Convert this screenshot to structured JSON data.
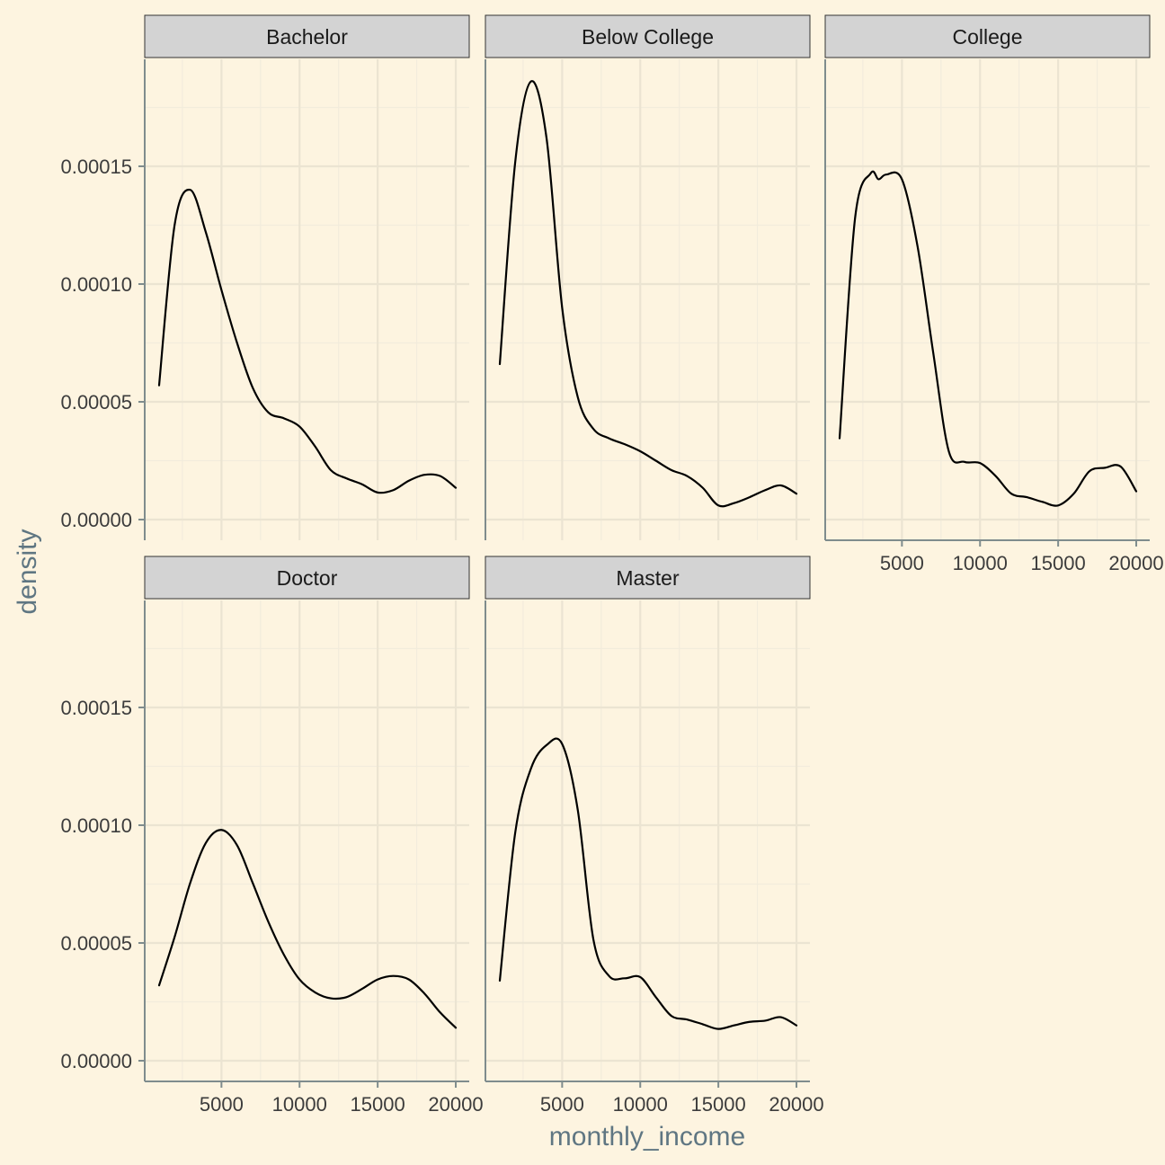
{
  "chart_data": {
    "type": "line",
    "xlabel": "monthly_income",
    "ylabel": "density",
    "xlim": [
      1009,
      19999
    ],
    "ylim": [
      0,
      0.00019
    ],
    "x_ticks": [
      5000,
      10000,
      15000,
      20000
    ],
    "x_tick_labels": [
      "5000",
      "10000",
      "15000",
      "20000"
    ],
    "y_ticks": [
      0,
      5e-05,
      0.0001,
      0.00015
    ],
    "y_tick_labels": [
      "0.00000",
      "0.00005",
      "0.00010",
      "0.00015"
    ],
    "grid": true,
    "legend": "none",
    "facets": [
      {
        "name": "Bachelor",
        "x": [
          1009,
          2000,
          3000,
          4000,
          5000,
          6000,
          7000,
          8000,
          9000,
          10000,
          11000,
          12000,
          13000,
          14000,
          15000,
          16000,
          17000,
          18000,
          19000,
          19999
        ],
        "y": [
          5.7e-05,
          0.000125,
          0.00014,
          0.000122,
          9.75e-05,
          7.5e-05,
          5.6e-05,
          4.55e-05,
          4.3e-05,
          3.95e-05,
          3.1e-05,
          2.1e-05,
          1.75e-05,
          1.5e-05,
          1.15e-05,
          1.25e-05,
          1.65e-05,
          1.9e-05,
          1.85e-05,
          1.35e-05
        ]
      },
      {
        "name": "Below College",
        "x": [
          1009,
          2000,
          3000,
          4000,
          5000,
          6000,
          7000,
          8000,
          9000,
          10000,
          11000,
          12000,
          13000,
          14000,
          15000,
          16000,
          17000,
          18000,
          19000,
          19999
        ],
        "y": [
          6.6e-05,
          0.000152,
          0.000186,
          0.000162,
          9e-05,
          5.2e-05,
          3.85e-05,
          3.45e-05,
          3.2e-05,
          2.9e-05,
          2.5e-05,
          2.1e-05,
          1.85e-05,
          1.35e-05,
          6e-06,
          7e-06,
          9.5e-06,
          1.25e-05,
          1.45e-05,
          1.1e-05
        ]
      },
      {
        "name": "College",
        "x": [
          1009,
          2000,
          3000,
          3500,
          4000,
          5000,
          6000,
          7000,
          8000,
          9000,
          10000,
          11000,
          12000,
          13000,
          14000,
          15000,
          16000,
          17000,
          18000,
          19000,
          19999
        ],
        "y": [
          3.45e-05,
          0.000128,
          0.000147,
          0.0001445,
          0.0001465,
          0.0001445,
          0.000116,
          7.1e-05,
          2.9e-05,
          2.45e-05,
          2.4e-05,
          1.85e-05,
          1.1e-05,
          9.5e-06,
          7.5e-06,
          6e-06,
          1.1e-05,
          2.05e-05,
          2.2e-05,
          2.25e-05,
          1.2e-05
        ]
      },
      {
        "name": "Doctor",
        "x": [
          1009,
          2000,
          3000,
          4000,
          5000,
          6000,
          7000,
          8000,
          9000,
          10000,
          11000,
          12000,
          13000,
          14000,
          15000,
          16000,
          17000,
          18000,
          19000,
          19999
        ],
        "y": [
          3.2e-05,
          5.25e-05,
          7.55e-05,
          9.25e-05,
          9.8e-05,
          9.15e-05,
          7.55e-05,
          5.9e-05,
          4.5e-05,
          3.45e-05,
          2.9e-05,
          2.65e-05,
          2.7e-05,
          3.05e-05,
          3.45e-05,
          3.6e-05,
          3.45e-05,
          2.85e-05,
          2.05e-05,
          1.4e-05
        ]
      },
      {
        "name": "Master",
        "x": [
          1009,
          2000,
          3000,
          4000,
          5000,
          6000,
          7000,
          8000,
          9000,
          10000,
          11000,
          12000,
          13000,
          14000,
          15000,
          16000,
          17000,
          18000,
          19000,
          19999
        ],
        "y": [
          3.4e-05,
          9.7e-05,
          0.000124,
          0.000134,
          0.0001345,
          0.0001065,
          5.15e-05,
          3.6e-05,
          3.5e-05,
          3.55e-05,
          2.7e-05,
          1.9e-05,
          1.75e-05,
          1.55e-05,
          1.35e-05,
          1.5e-05,
          1.65e-05,
          1.7e-05,
          1.85e-05,
          1.5e-05
        ]
      }
    ]
  }
}
